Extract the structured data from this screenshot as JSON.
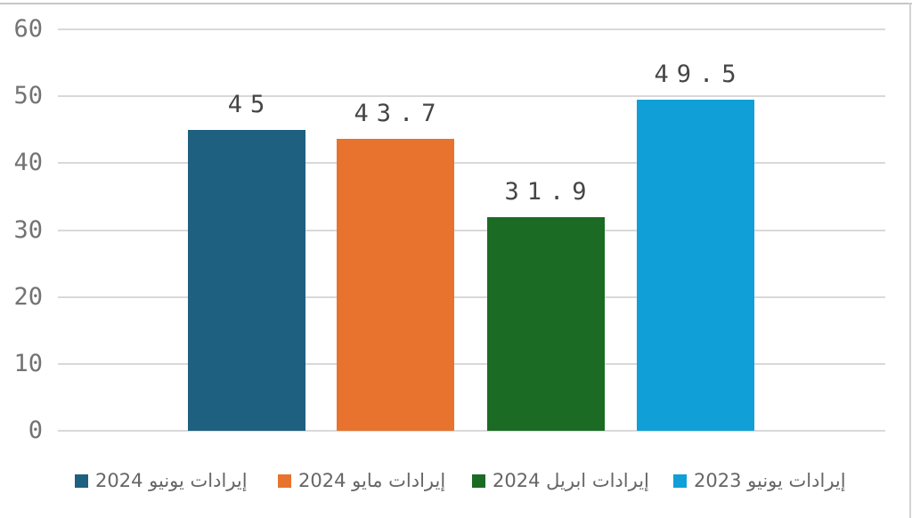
{
  "chart_data": {
    "type": "bar",
    "title": "",
    "xlabel": "",
    "ylabel": "",
    "ylim": [
      0,
      60
    ],
    "yticks": [
      0,
      10,
      20,
      30,
      40,
      50,
      60
    ],
    "grid": true,
    "legend_position": "bottom",
    "series": [
      {
        "name": "إيرادات يونيو 2024",
        "value": 45,
        "label": "45",
        "color": "#1E6080"
      },
      {
        "name": "إيرادات مايو 2024",
        "value": 43.7,
        "label": "43.7",
        "color": "#E8732E"
      },
      {
        "name": "إيرادات ابريل 2024",
        "value": 31.9,
        "label": "31.9",
        "color": "#1B6B24"
      },
      {
        "name": "إيرادات يونيو 2023",
        "value": 49.5,
        "label": "49.5",
        "color": "#119FD8"
      }
    ]
  },
  "colors": {
    "background": "#ffffff",
    "gridline": "#d9d9d9",
    "border": "#c6c6c6",
    "axis_label": "#737373",
    "value_label": "#454545",
    "legend_text": "#666666"
  }
}
